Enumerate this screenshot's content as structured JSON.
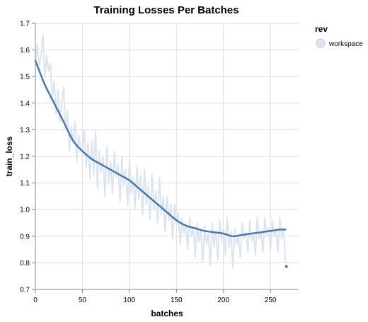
{
  "chart_data": {
    "type": "line",
    "title": "Training Losses Per Batches",
    "xlabel": "batches",
    "ylabel": "train_loss",
    "xlim": [
      0,
      280
    ],
    "ylim": [
      0.7,
      1.7
    ],
    "x_ticks": [
      0,
      50,
      100,
      150,
      200,
      250
    ],
    "y_ticks": [
      0.7,
      0.8,
      0.9,
      1.0,
      1.1,
      1.2,
      1.3,
      1.4,
      1.5,
      1.6,
      1.7
    ],
    "x_tick_labels": [
      "0",
      "50",
      "100",
      "150",
      "200",
      "250"
    ],
    "y_tick_labels": [
      "0.7",
      "0.8",
      "0.9",
      "1.0",
      "1.1",
      "1.2",
      "1.3",
      "1.4",
      "1.5",
      "1.6",
      "1.7"
    ],
    "grid": true,
    "legend": {
      "title": "rev",
      "position": "top-right",
      "entries": [
        "workspace"
      ]
    },
    "colors": {
      "raw": "#dbe4f0",
      "smooth": "#4c78a8",
      "point": "#4c78a8",
      "legend_fill": "#dbe4f0",
      "legend_stroke": "#b9c9de"
    },
    "series": [
      {
        "name": "workspace",
        "kind": "raw",
        "x": [
          0,
          2,
          4,
          6,
          8,
          10,
          12,
          14,
          16,
          18,
          20,
          22,
          24,
          26,
          28,
          30,
          32,
          34,
          36,
          38,
          40,
          42,
          44,
          46,
          48,
          50,
          52,
          54,
          56,
          58,
          60,
          62,
          64,
          66,
          68,
          70,
          72,
          74,
          76,
          78,
          80,
          82,
          84,
          86,
          88,
          90,
          92,
          94,
          96,
          98,
          100,
          102,
          104,
          106,
          108,
          110,
          112,
          114,
          116,
          118,
          120,
          122,
          124,
          126,
          128,
          130,
          132,
          134,
          136,
          138,
          140,
          142,
          144,
          146,
          148,
          150,
          152,
          154,
          156,
          158,
          160,
          162,
          164,
          166,
          168,
          170,
          172,
          174,
          176,
          178,
          180,
          182,
          184,
          186,
          188,
          190,
          192,
          194,
          196,
          198,
          200,
          202,
          204,
          206,
          208,
          210,
          212,
          214,
          216,
          218,
          220,
          222,
          224,
          226,
          228,
          230,
          232,
          234,
          236,
          238,
          240,
          242,
          244,
          246,
          248,
          250,
          252,
          254,
          256,
          258,
          260,
          262,
          264,
          266
        ],
        "y": [
          1.56,
          1.62,
          1.54,
          1.58,
          1.66,
          1.5,
          1.58,
          1.52,
          1.55,
          1.42,
          1.48,
          1.36,
          1.45,
          1.33,
          1.4,
          1.46,
          1.3,
          1.37,
          1.22,
          1.31,
          1.25,
          1.33,
          1.18,
          1.28,
          1.24,
          1.21,
          1.3,
          1.16,
          1.25,
          1.12,
          1.26,
          1.13,
          1.3,
          1.08,
          1.22,
          1.14,
          1.2,
          1.05,
          1.24,
          1.1,
          1.18,
          1.06,
          1.22,
          1.12,
          1.17,
          1.03,
          1.2,
          1.09,
          1.15,
          1.02,
          1.19,
          1.06,
          1.12,
          1.0,
          1.16,
          1.04,
          1.13,
          0.98,
          1.15,
          1.02,
          1.09,
          0.96,
          1.13,
          1.0,
          1.07,
          0.95,
          1.12,
          0.98,
          1.05,
          0.92,
          1.05,
          0.96,
          1.02,
          0.89,
          1.02,
          0.94,
          0.99,
          0.87,
          0.97,
          0.91,
          0.95,
          0.85,
          0.97,
          0.9,
          0.93,
          0.82,
          0.95,
          0.88,
          0.92,
          0.8,
          0.94,
          0.87,
          0.91,
          0.79,
          0.95,
          0.86,
          0.92,
          0.81,
          0.96,
          0.88,
          0.93,
          0.83,
          0.97,
          0.86,
          0.92,
          0.78,
          0.93,
          0.87,
          0.9,
          0.82,
          0.95,
          0.89,
          0.92,
          0.84,
          0.96,
          0.88,
          0.91,
          0.83,
          0.97,
          0.89,
          0.92,
          0.84,
          0.97,
          0.9,
          0.93,
          0.85,
          0.96,
          0.9,
          0.92,
          0.84,
          0.97,
          0.89,
          0.93,
          0.8
        ]
      },
      {
        "name": "workspace",
        "kind": "smoothed",
        "x": [
          0,
          10,
          20,
          30,
          40,
          50,
          60,
          70,
          80,
          90,
          100,
          110,
          120,
          130,
          140,
          150,
          160,
          170,
          180,
          190,
          200,
          210,
          220,
          230,
          240,
          250,
          260,
          266
        ],
        "y": [
          1.56,
          1.47,
          1.4,
          1.33,
          1.26,
          1.22,
          1.19,
          1.17,
          1.15,
          1.13,
          1.11,
          1.08,
          1.05,
          1.02,
          0.99,
          0.96,
          0.94,
          0.93,
          0.92,
          0.915,
          0.91,
          0.9,
          0.905,
          0.91,
          0.915,
          0.92,
          0.925,
          0.925
        ]
      }
    ],
    "points": [
      {
        "x": 267,
        "y": 0.786
      }
    ]
  }
}
